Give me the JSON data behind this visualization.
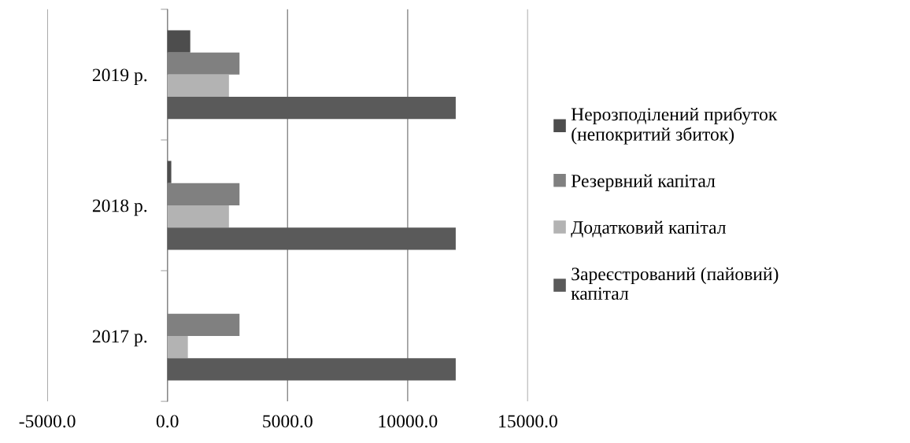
{
  "chart_data": {
    "type": "bar",
    "orientation": "horizontal",
    "categories": [
      "2019 р.",
      "2018 р.",
      "2017 р."
    ],
    "series": [
      {
        "name": "Нерозподілений прибуток (непокритий збиток)",
        "color": "#4d4d4d",
        "values": [
          950,
          160,
          0
        ]
      },
      {
        "name": "Резервний капітал",
        "color": "#808080",
        "values": [
          3000,
          3000,
          3000
        ]
      },
      {
        "name": "Додатковий капітал",
        "color": "#b3b3b3",
        "values": [
          2560,
          2560,
          850
        ]
      },
      {
        "name": "Зареєстрований (пайовий) капітал",
        "color": "#5a5a5a",
        "values": [
          12000,
          12000,
          12000
        ]
      }
    ],
    "xlim": [
      -5000,
      15000
    ],
    "xticks": [
      {
        "value": -5000,
        "label": "-5000.0"
      },
      {
        "value": 0,
        "label": "0.0"
      },
      {
        "value": 5000,
        "label": "5000.0"
      },
      {
        "value": 10000,
        "label": "10000.0"
      },
      {
        "value": 15000,
        "label": "15000.0"
      }
    ],
    "grid": "x",
    "legend": "right"
  }
}
